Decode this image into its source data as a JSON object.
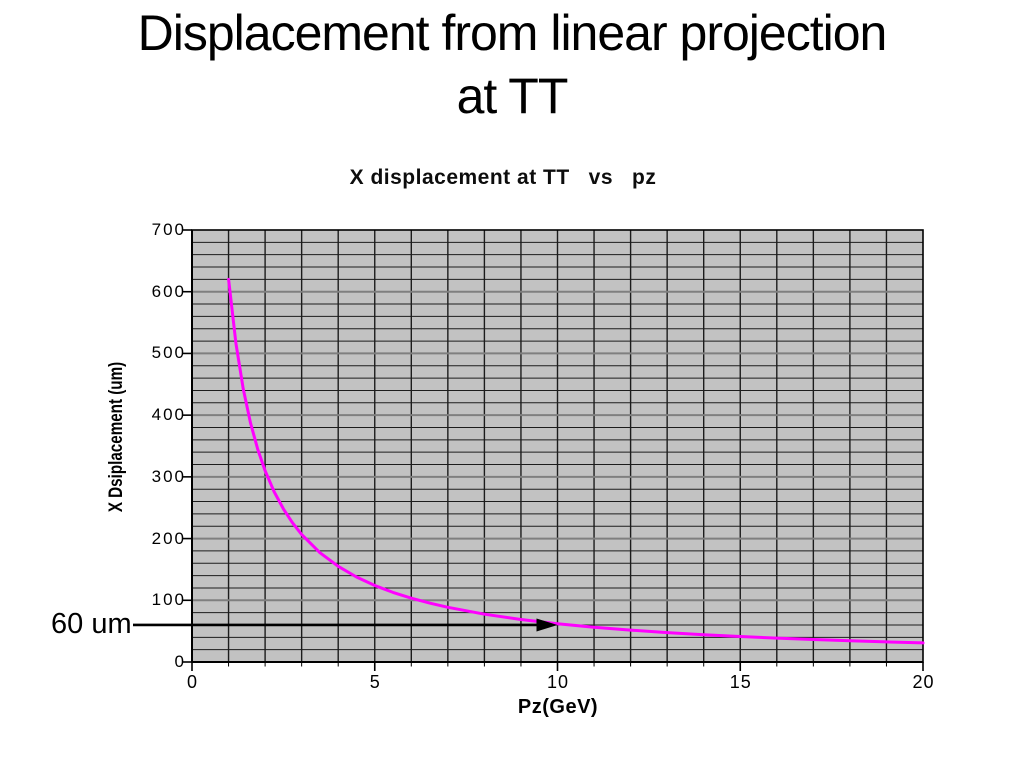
{
  "slide": {
    "title_line1": "Displacement from linear projection",
    "title_line2": "at TT"
  },
  "chart": {
    "title": "X displacement at TT   vs   pz",
    "x_axis": {
      "title": "Pz(GeV)",
      "min": 0,
      "max": 20,
      "major_step": 5,
      "minor_step": 1,
      "tick_labels": [
        "0",
        "5",
        "10",
        "15",
        "20"
      ]
    },
    "y_axis": {
      "title": "X Dsiplacement (um)",
      "min": 0,
      "max": 700,
      "major_step": 100,
      "minor_step": 20,
      "tick_labels": [
        "0",
        "100",
        "200",
        "300",
        "400",
        "500",
        "600",
        "700"
      ]
    },
    "annotation": {
      "label": "60 um",
      "value_um": 60,
      "arrow_tip_pz": 10
    },
    "colors": {
      "plot_background": "#c2c2c2",
      "grid_minor": "#1c1c1c",
      "grid_major_horizontal": "#7f7f7f",
      "axis_and_border": "#000000",
      "curve": "#ff00ff",
      "annotation": "#000000",
      "text": "#000000",
      "slide_background": "#ffffff"
    }
  },
  "chart_data": {
    "type": "line",
    "title": "X displacement at TT vs pz",
    "xlabel": "Pz(GeV)",
    "ylabel": "X Dsiplacement (um)",
    "xlim": [
      0,
      20
    ],
    "ylim": [
      0,
      700
    ],
    "x_major_step": 5,
    "x_minor_step": 1,
    "y_major_step": 100,
    "y_minor_step": 20,
    "grid": "on",
    "legend": "none",
    "plot_area_style": "gray filled, dense minor grid",
    "series": [
      {
        "name": "X displacement at TT",
        "color": "#ff00ff",
        "x": [
          1,
          1.2,
          1.4,
          1.6,
          1.8,
          2,
          2.25,
          2.5,
          2.75,
          3,
          3.5,
          4,
          4.5,
          5,
          5.5,
          6,
          6.5,
          7,
          8,
          9,
          10,
          11,
          12,
          13,
          14,
          15,
          16,
          17,
          18,
          19,
          20
        ],
        "y": [
          620,
          516.7,
          442.9,
          387.5,
          344.4,
          310,
          275.6,
          248,
          225.5,
          206.7,
          177.1,
          155,
          137.8,
          124,
          112.7,
          103.3,
          95.4,
          88.6,
          77.5,
          68.9,
          62,
          56.4,
          51.7,
          47.7,
          44.3,
          41.3,
          38.8,
          36.5,
          34.4,
          32.6,
          31
        ]
      }
    ],
    "annotations": [
      {
        "text": "60 um",
        "type": "horizontal-arrow",
        "y": 60,
        "arrow_tip_x": 10,
        "note": "black arrow from left margin pointing right to curve near pz=10"
      }
    ]
  }
}
